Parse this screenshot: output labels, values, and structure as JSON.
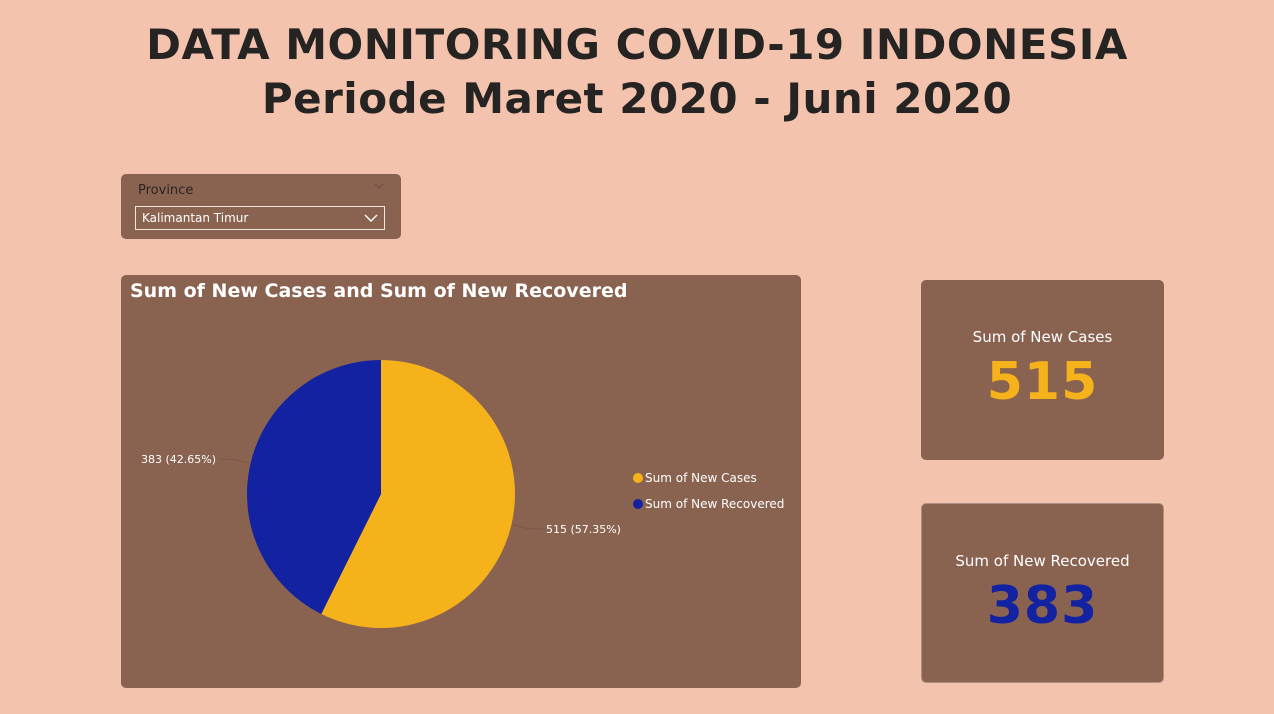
{
  "header": {
    "title_line1": "DATA MONITORING COVID-19 INDONESIA",
    "title_line2": "Periode Maret 2020 - Juni 2020"
  },
  "slicer": {
    "label": "Province",
    "selected": "Kalimantan Timur"
  },
  "colors": {
    "background": "#f4c3ad",
    "card": "#8a6350",
    "cases": "#f5b21a",
    "recovered": "#1222a0"
  },
  "chart_data": {
    "type": "pie",
    "title": "Sum of New Cases and Sum of New Recovered",
    "legend_position": "right",
    "series": [
      {
        "name": "Sum of New Cases",
        "value": 515,
        "percent": 57.35,
        "label": "515 (57.35%)",
        "color": "#f5b21a"
      },
      {
        "name": "Sum of New Recovered",
        "value": 383,
        "percent": 42.65,
        "label": "383 (42.65%)",
        "color": "#1222a0"
      }
    ]
  },
  "kpis": {
    "cases": {
      "label": "Sum of New Cases",
      "value": "515",
      "color": "#f5b21a"
    },
    "recovered": {
      "label": "Sum of New Recovered",
      "value": "383",
      "color": "#1222a0"
    }
  }
}
